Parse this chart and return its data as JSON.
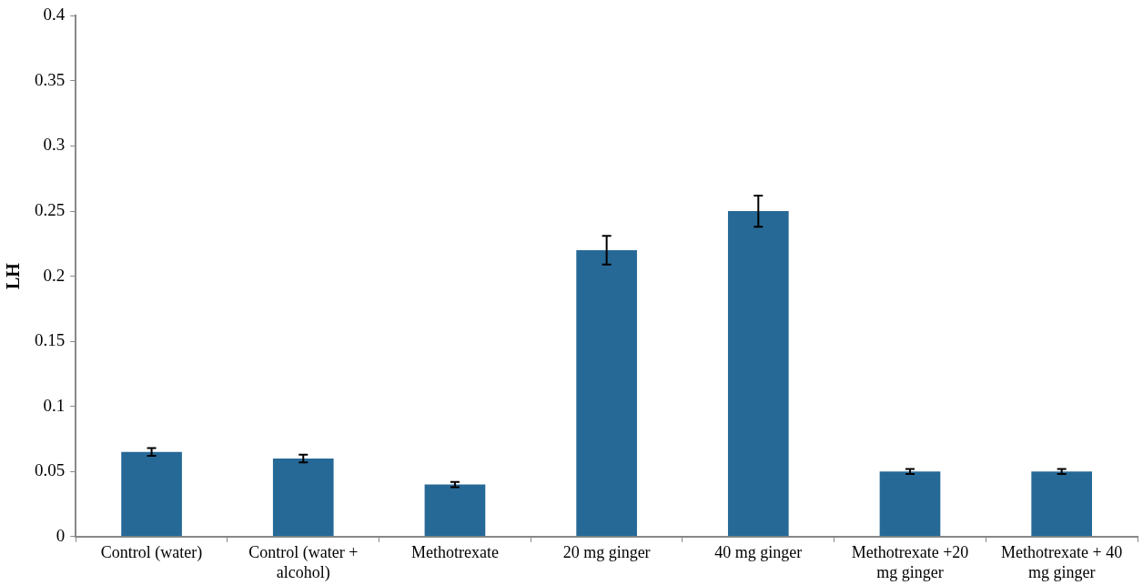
{
  "chart_data": {
    "type": "bar",
    "ylabel": "LH",
    "categories": [
      "Control (water)",
      "Control (water  + alcohol)",
      "Methotrexate",
      "20 mg ginger",
      "40 mg ginger",
      "Methotrexate +20 mg ginger",
      "Methotrexate + 40 mg ginger"
    ],
    "values": [
      0.065,
      0.06,
      0.04,
      0.22,
      0.25,
      0.05,
      0.05
    ],
    "errors": [
      0.003,
      0.003,
      0.002,
      0.011,
      0.012,
      0.002,
      0.002
    ],
    "color": "#266997",
    "ylim": [
      0,
      0.4
    ],
    "yticks": [
      0,
      0.05,
      0.1,
      0.15,
      0.2,
      0.25,
      0.3,
      0.35,
      0.4
    ],
    "grid": false,
    "legend": false
  }
}
